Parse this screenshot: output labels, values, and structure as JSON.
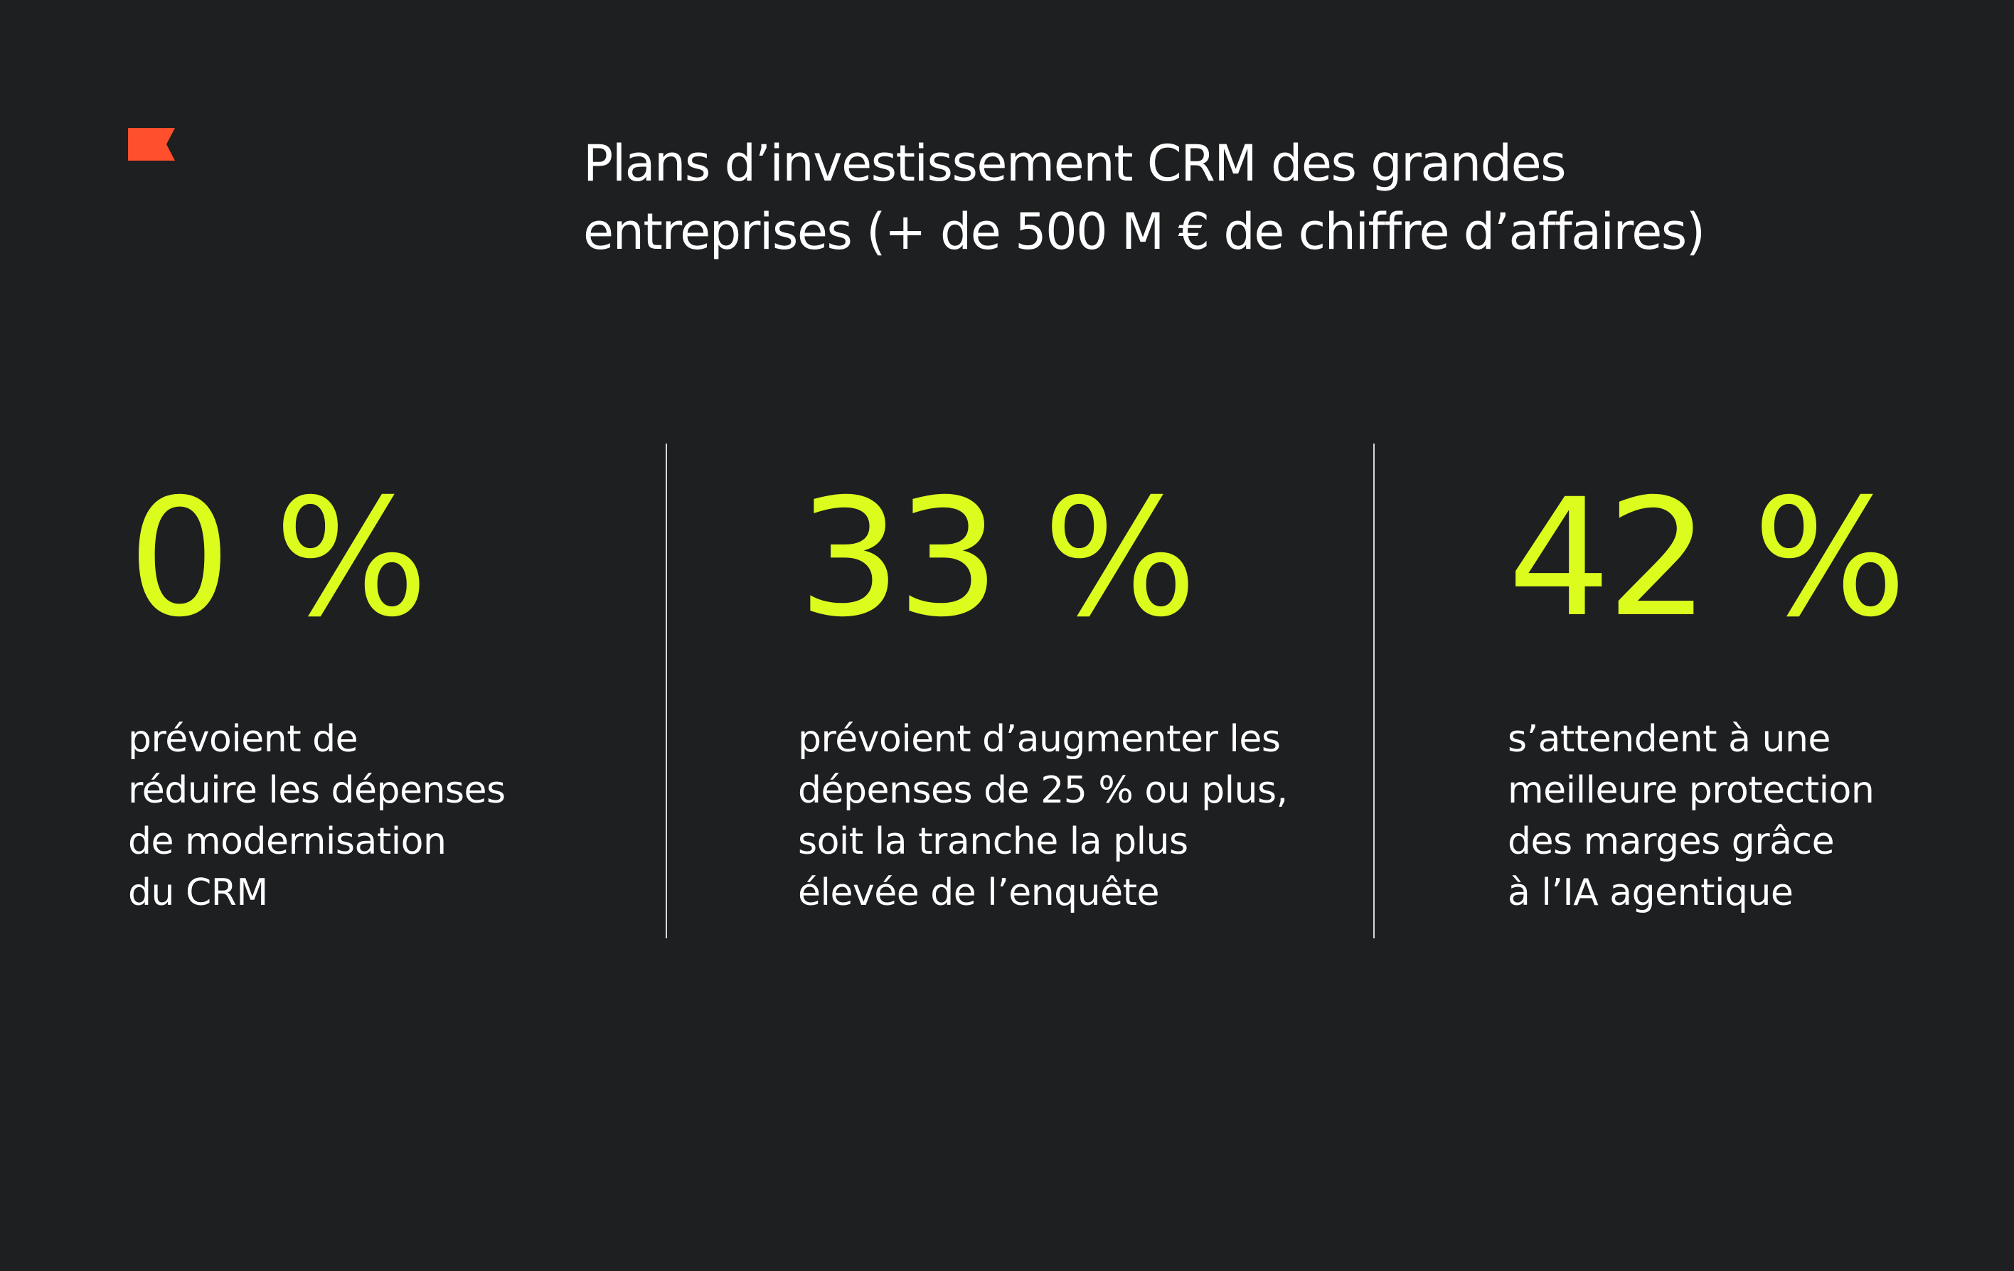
{
  "brand": {
    "logo_icon": "flag-logo-icon",
    "logo_color": "#ff4f2d"
  },
  "title": {
    "lines": [
      "Plans d’investissement CRM des grandes",
      "entreprises (+ de 500 M € de chiffre d’affaires)"
    ]
  },
  "colors": {
    "background": "#1e1f21",
    "accent": "#dcfc1e",
    "text": "#ffffff",
    "divider": "#d8d8d8"
  },
  "stats": [
    {
      "value": "0 %",
      "description": [
        "prévoient de",
        "réduire les dépenses",
        "de modernisation",
        "du CRM"
      ]
    },
    {
      "value": "33 %",
      "description": [
        "prévoient d’augmenter les",
        "dépenses de 25 % ou plus,",
        "soit la tranche la plus",
        "élevée de l’enquête"
      ]
    },
    {
      "value": "42 %",
      "description": [
        "s’attendent à une",
        "meilleure protection",
        "des marges grâce",
        "à l’IA agentique"
      ]
    }
  ]
}
